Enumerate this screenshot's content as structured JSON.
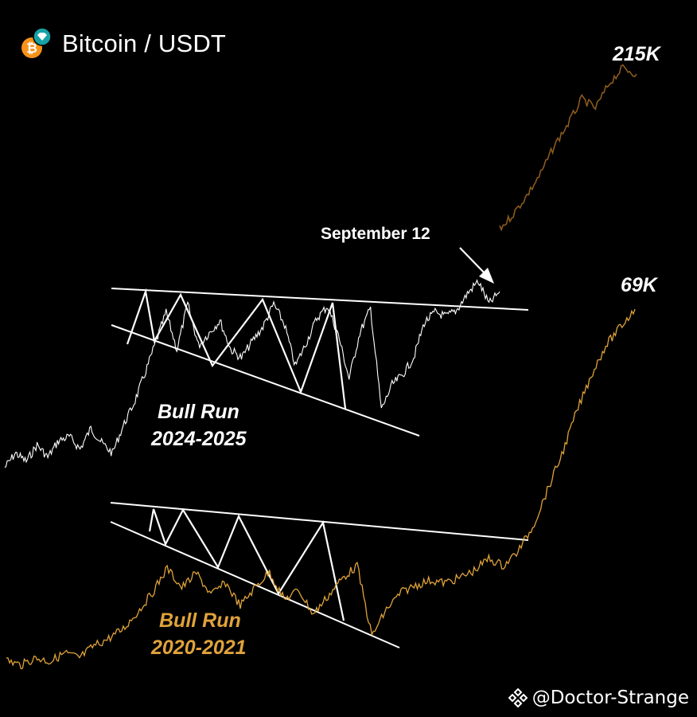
{
  "header": {
    "title": "Bitcoin / USDT"
  },
  "colors": {
    "background": "#000000",
    "current_cycle": "#ffffff",
    "projection": "#8a5a1e",
    "previous_cycle": "#e0a33a",
    "pattern_lines": "#ffffff",
    "label_white": "#ffffff",
    "label_gold": "#e0a33a",
    "icon_orange": "#f7931a",
    "icon_teal": "#17a2a6"
  },
  "chart_data": [
    {
      "type": "line",
      "title": "",
      "series": [
        {
          "values": [
            0.15,
            0.22,
            0.18,
            0.26,
            0.2,
            0.28,
            0.3,
            0.24,
            0.34,
            0.27,
            0.22,
            0.35,
            0.46,
            0.6,
            0.75,
            0.9,
            0.72,
            0.94,
            0.74,
            0.8,
            0.86,
            0.72,
            0.68,
            0.76,
            0.83,
            0.94,
            0.84,
            0.64,
            0.75,
            0.87,
            0.93,
            0.79,
            0.58,
            0.8,
            0.92,
            0.43,
            0.55,
            0.6,
            0.68,
            0.85,
            0.9,
            0.88,
            0.91,
            0.99,
            1.05,
            0.94,
            1.0
          ]
        }
      ],
      "projection": {
        "values": [
          1.0,
          1.25,
          1.55,
          1.9,
          2.35,
          2.7,
          3.1,
          2.95,
          3.35,
          3.6,
          3.5
        ]
      },
      "annotations": [
        {
          "text": "September 12"
        },
        {
          "text": "215K"
        },
        {
          "text": "Bull Run"
        },
        {
          "text": "2024-2025"
        }
      ],
      "pattern": "descending broadening wedge"
    },
    {
      "type": "line",
      "title": "",
      "series": [
        {
          "values": [
            0.1,
            0.06,
            0.12,
            0.09,
            0.16,
            0.12,
            0.22,
            0.28,
            0.36,
            0.5,
            0.66,
            0.86,
            0.7,
            0.82,
            0.64,
            0.74,
            0.55,
            0.7,
            0.83,
            0.6,
            0.68,
            0.48,
            0.63,
            0.78,
            0.88,
            0.3,
            0.52,
            0.66,
            0.72,
            0.76,
            0.74,
            0.78,
            0.84,
            0.94,
            0.88,
            1.0,
            1.2,
            1.5,
            1.8,
            2.15,
            2.45,
            2.7,
            2.85,
            3.0
          ]
        }
      ],
      "annotations": [
        {
          "text": "69K"
        },
        {
          "text": "Bull Run"
        },
        {
          "text": "2020-2021"
        }
      ],
      "pattern": "descending broadening wedge"
    }
  ],
  "labels": {
    "peak_2025": "215K",
    "peak_2021": "69K",
    "september": "September 12",
    "run_2025_line1": "Bull Run",
    "run_2025_line2": "2024-2025",
    "run_2021_line1": "Bull Run",
    "run_2021_line2": "2020-2021"
  },
  "watermark": {
    "text": "@Doctor-Strange"
  }
}
